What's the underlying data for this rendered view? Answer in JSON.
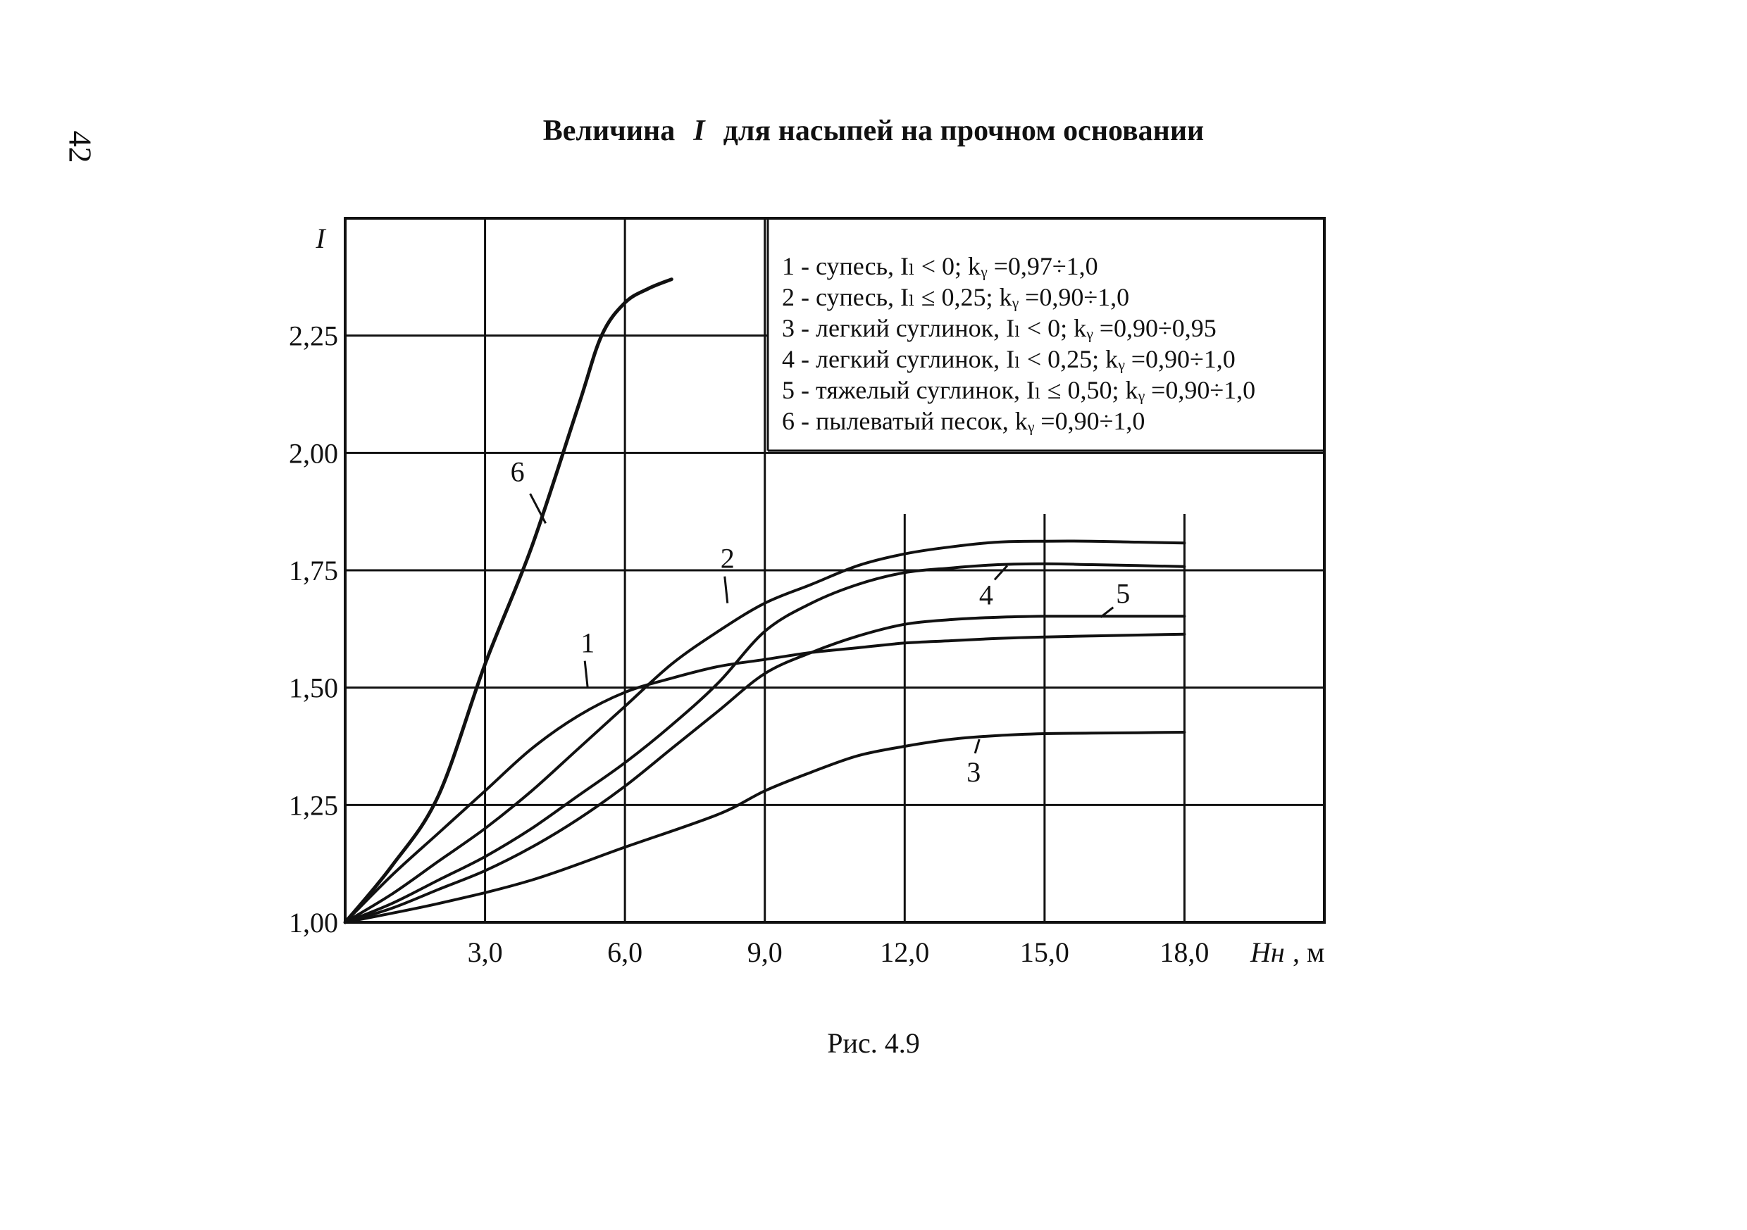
{
  "page": {
    "number": "42",
    "title_before": "Величина",
    "title_symbol": "I",
    "title_after": "для насыпей на прочном основании",
    "caption": "Рис. 4.9"
  },
  "chart_data": {
    "type": "line",
    "title": "Величина I для насыпей на прочном основании",
    "ylabel": "I",
    "xlabel_symbol": "Hн",
    "xlabel_unit": ", м",
    "xlim": [
      0,
      21
    ],
    "ylim": [
      1.0,
      2.5
    ],
    "x_ticks": [
      "3,0",
      "6,0",
      "9,0",
      "12,0",
      "15,0",
      "18,0"
    ],
    "y_ticks": [
      "1,00",
      "1,25",
      "1,50",
      "1,75",
      "2,00",
      "2,25"
    ],
    "grid": true,
    "legend_position": "top-right",
    "legend": [
      "1 - супесь, Iₗ < 0;  kᵧ =0,97÷1,0",
      "2 - супесь, Iₗ ≤ 0,25;  kᵧ =0,90÷1,0",
      "3 - легкий суглинок, Iₗ < 0;  kᵧ =0,90÷0,95",
      "4 - легкий суглинок, Iₗ < 0,25;  kᵧ =0,90÷1,0",
      "5 - тяжелый суглинок, Iₗ ≤ 0,50;  kᵧ =0,90÷1,0",
      "6 - пылеватый песок, kᵧ =0,90÷1,0"
    ],
    "series": [
      {
        "name": "1",
        "points": [
          [
            0,
            1.0
          ],
          [
            1,
            1.1
          ],
          [
            2,
            1.19
          ],
          [
            3,
            1.28
          ],
          [
            4,
            1.37
          ],
          [
            5,
            1.44
          ],
          [
            6,
            1.49
          ],
          [
            7,
            1.52
          ],
          [
            8,
            1.545
          ],
          [
            9,
            1.56
          ],
          [
            10,
            1.575
          ],
          [
            11,
            1.585
          ],
          [
            12,
            1.595
          ],
          [
            13,
            1.6
          ],
          [
            14,
            1.605
          ],
          [
            15,
            1.608
          ],
          [
            16,
            1.61
          ],
          [
            17,
            1.612
          ],
          [
            18,
            1.614
          ]
        ]
      },
      {
        "name": "2",
        "points": [
          [
            0,
            1.0
          ],
          [
            1,
            1.06
          ],
          [
            2,
            1.13
          ],
          [
            3,
            1.2
          ],
          [
            4,
            1.28
          ],
          [
            5,
            1.37
          ],
          [
            6,
            1.46
          ],
          [
            7,
            1.55
          ],
          [
            8,
            1.62
          ],
          [
            9,
            1.68
          ],
          [
            10,
            1.72
          ],
          [
            11,
            1.76
          ],
          [
            12,
            1.785
          ],
          [
            13,
            1.8
          ],
          [
            14,
            1.81
          ],
          [
            15,
            1.812
          ],
          [
            16,
            1.812
          ],
          [
            17,
            1.81
          ],
          [
            18,
            1.808
          ]
        ]
      },
      {
        "name": "3",
        "points": [
          [
            0,
            1.0
          ],
          [
            2,
            1.04
          ],
          [
            4,
            1.09
          ],
          [
            6,
            1.16
          ],
          [
            8,
            1.23
          ],
          [
            9,
            1.28
          ],
          [
            10,
            1.32
          ],
          [
            11,
            1.355
          ],
          [
            12,
            1.375
          ],
          [
            13,
            1.39
          ],
          [
            14,
            1.398
          ],
          [
            15,
            1.402
          ],
          [
            16,
            1.403
          ],
          [
            17,
            1.404
          ],
          [
            18,
            1.405
          ]
        ]
      },
      {
        "name": "4",
        "points": [
          [
            0,
            1.0
          ],
          [
            1,
            1.04
          ],
          [
            2,
            1.09
          ],
          [
            3,
            1.14
          ],
          [
            4,
            1.2
          ],
          [
            5,
            1.27
          ],
          [
            6,
            1.34
          ],
          [
            7,
            1.42
          ],
          [
            8,
            1.51
          ],
          [
            9,
            1.62
          ],
          [
            10,
            1.68
          ],
          [
            11,
            1.72
          ],
          [
            12,
            1.745
          ],
          [
            13,
            1.755
          ],
          [
            14,
            1.762
          ],
          [
            15,
            1.764
          ],
          [
            16,
            1.762
          ],
          [
            17,
            1.76
          ],
          [
            18,
            1.758
          ]
        ]
      },
      {
        "name": "5",
        "points": [
          [
            0,
            1.0
          ],
          [
            1,
            1.03
          ],
          [
            2,
            1.07
          ],
          [
            3,
            1.11
          ],
          [
            4,
            1.16
          ],
          [
            5,
            1.22
          ],
          [
            6,
            1.29
          ],
          [
            7,
            1.37
          ],
          [
            8,
            1.45
          ],
          [
            9,
            1.53
          ],
          [
            10,
            1.575
          ],
          [
            11,
            1.61
          ],
          [
            12,
            1.635
          ],
          [
            13,
            1.645
          ],
          [
            14,
            1.65
          ],
          [
            15,
            1.652
          ],
          [
            16,
            1.652
          ],
          [
            17,
            1.652
          ],
          [
            18,
            1.652
          ]
        ]
      },
      {
        "name": "6",
        "points": [
          [
            0,
            1.0
          ],
          [
            1,
            1.12
          ],
          [
            2,
            1.27
          ],
          [
            3,
            1.55
          ],
          [
            4,
            1.8
          ],
          [
            5,
            2.1
          ],
          [
            5.5,
            2.25
          ],
          [
            6,
            2.32
          ],
          [
            6.5,
            2.35
          ],
          [
            7,
            2.37
          ]
        ]
      }
    ],
    "curve_labels": [
      {
        "text": "1",
        "x": 5.2,
        "y": 1.5
      },
      {
        "text": "2",
        "x": 8.2,
        "y": 1.68
      },
      {
        "text": "3",
        "x": 13.6,
        "y": 1.39
      },
      {
        "text": "4",
        "x": 14.2,
        "y": 1.76
      },
      {
        "text": "5",
        "x": 16.2,
        "y": 1.65
      },
      {
        "text": "6",
        "x": 4.3,
        "y": 1.85
      }
    ]
  }
}
